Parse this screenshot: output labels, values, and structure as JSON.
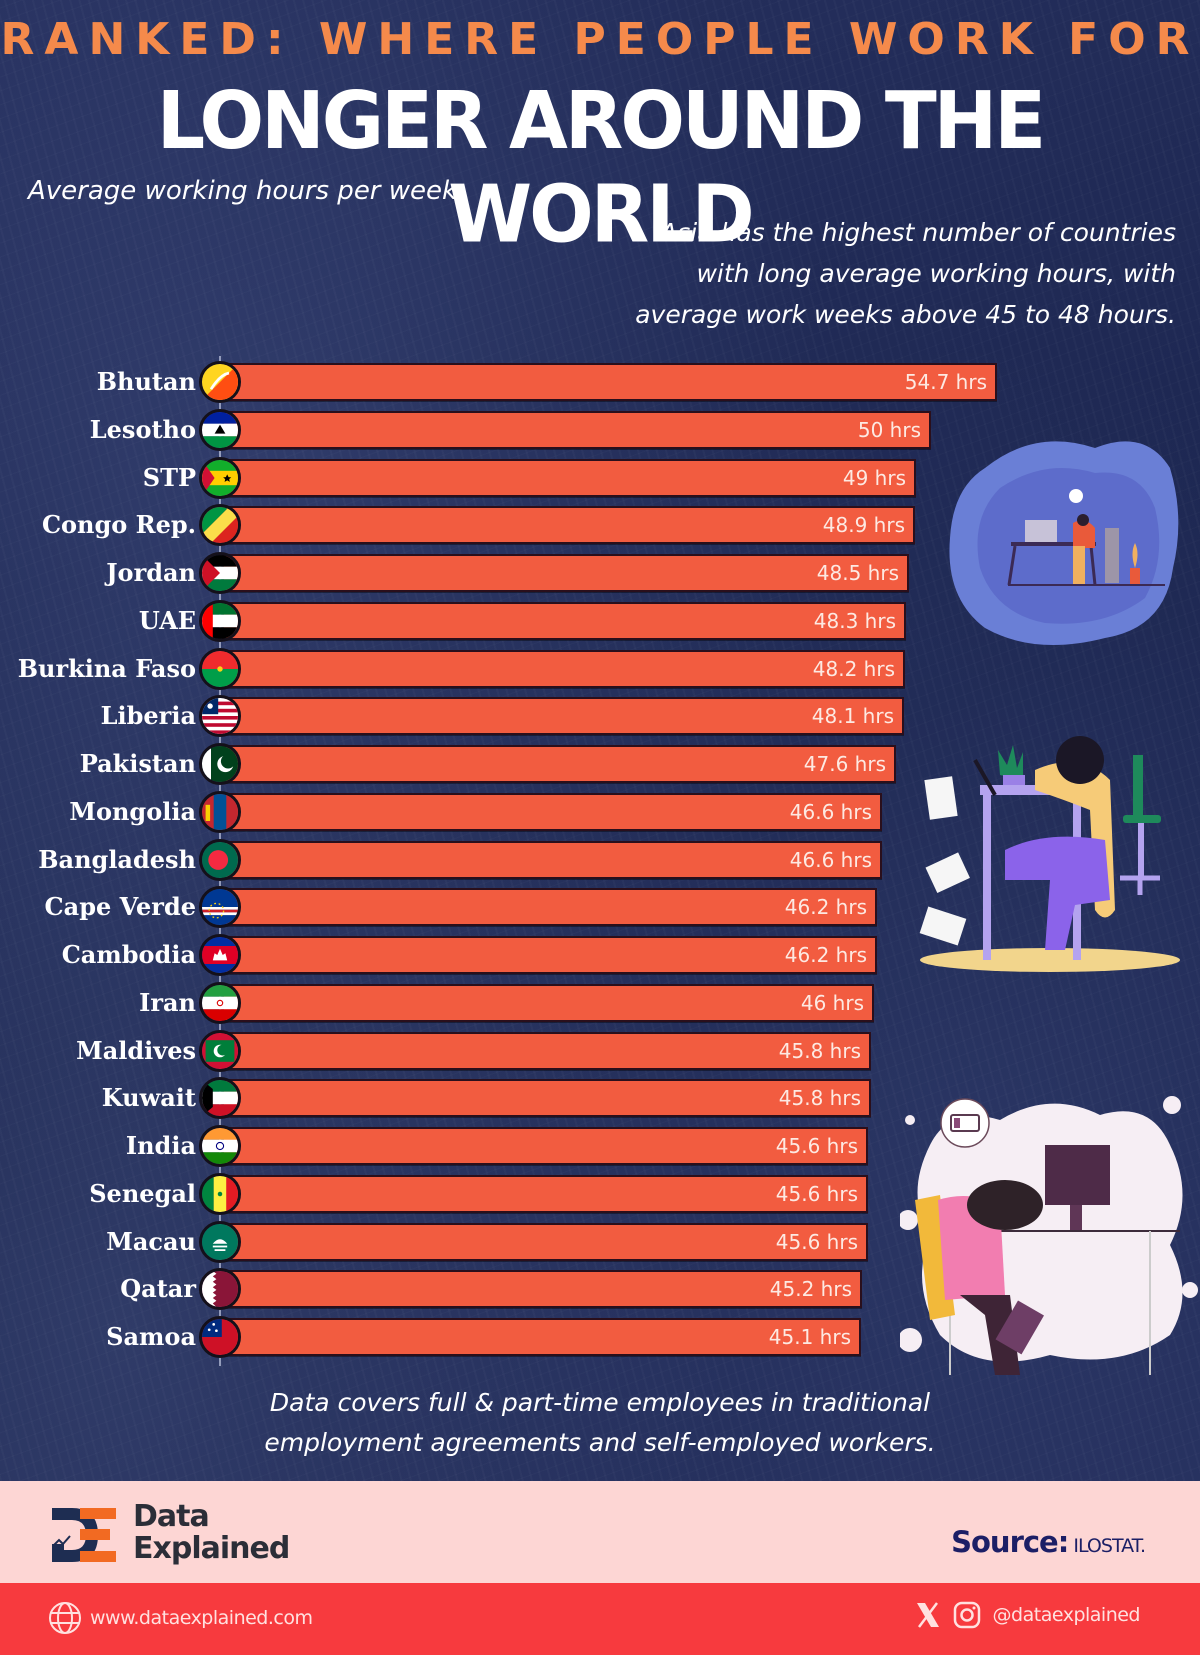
{
  "header": {
    "kicker": "RANKED: WHERE PEOPLE WORK FOR",
    "headline": "LONGER AROUND THE WORLD",
    "subtitle": "Average working hours per week.",
    "note_lines": [
      "Asia has the highest number of countries",
      "with long average working hours, with",
      "average work weeks above 45 to 48 hours."
    ]
  },
  "colors": {
    "background": "#1f2a55",
    "bar": "#f25c40",
    "kicker": "#f58a4b",
    "brand_band": "#fdd6d4",
    "social_band": "#f73a3e",
    "source_text": "#1c1f66"
  },
  "chart_data": {
    "type": "bar",
    "orientation": "horizontal",
    "title": "RANKED: WHERE PEOPLE WORK FOR LONGER AROUND THE WORLD",
    "subtitle": "Average working hours per week.",
    "xlabel": "",
    "ylabel": "",
    "unit": "hrs",
    "grid": false,
    "categories": [
      "Bhutan",
      "Lesotho",
      "STP",
      "Congo Rep.",
      "Jordan",
      "UAE",
      "Burkina Faso",
      "Liberia",
      "Pakistan",
      "Mongolia",
      "Bangladesh",
      "Cape Verde",
      "Cambodia",
      "Iran",
      "Maldives",
      "Kuwait",
      "India",
      "Senegal",
      "Macau",
      "Qatar",
      "Samoa"
    ],
    "values": [
      54.7,
      50,
      49,
      48.9,
      48.5,
      48.3,
      48.2,
      48.1,
      47.6,
      46.6,
      46.6,
      46.2,
      46.2,
      46,
      45.8,
      45.8,
      45.6,
      45.6,
      45.6,
      45.2,
      45.1
    ],
    "value_labels": [
      "54.7 hrs",
      "50 hrs",
      "49 hrs",
      "48.9 hrs",
      "48.5 hrs",
      "48.3 hrs",
      "48.2 hrs",
      "48.1 hrs",
      "47.6 hrs",
      "46.6 hrs",
      "46.6 hrs",
      "46.2 hrs",
      "46.2 hrs",
      "46 hrs",
      "45.8 hrs",
      "45.8 hrs",
      "45.6 hrs",
      "45.6 hrs",
      "45.6 hrs",
      "45.2 hrs",
      "45.1 hrs"
    ]
  },
  "rows": [
    {
      "country": "Bhutan",
      "value": 54.7,
      "label": "54.7 hrs",
      "flag": "bhutan"
    },
    {
      "country": "Lesotho",
      "value": 50,
      "label": "50 hrs",
      "flag": "lesotho"
    },
    {
      "country": "STP",
      "value": 49,
      "label": "49 hrs",
      "flag": "stp"
    },
    {
      "country": "Congo Rep.",
      "value": 48.9,
      "label": "48.9 hrs",
      "flag": "congo"
    },
    {
      "country": "Jordan",
      "value": 48.5,
      "label": "48.5 hrs",
      "flag": "jordan"
    },
    {
      "country": "UAE",
      "value": 48.3,
      "label": "48.3 hrs",
      "flag": "uae"
    },
    {
      "country": "Burkina Faso",
      "value": 48.2,
      "label": "48.2 hrs",
      "flag": "burkina"
    },
    {
      "country": "Liberia",
      "value": 48.1,
      "label": "48.1 hrs",
      "flag": "liberia"
    },
    {
      "country": "Pakistan",
      "value": 47.6,
      "label": "47.6 hrs",
      "flag": "pakistan"
    },
    {
      "country": "Mongolia",
      "value": 46.6,
      "label": "46.6 hrs",
      "flag": "mongolia"
    },
    {
      "country": "Bangladesh",
      "value": 46.6,
      "label": "46.6 hrs",
      "flag": "bangladesh"
    },
    {
      "country": "Cape Verde",
      "value": 46.2,
      "label": "46.2 hrs",
      "flag": "capeverde"
    },
    {
      "country": "Cambodia",
      "value": 46.2,
      "label": "46.2 hrs",
      "flag": "cambodia"
    },
    {
      "country": "Iran",
      "value": 46,
      "label": "46 hrs",
      "flag": "iran"
    },
    {
      "country": "Maldives",
      "value": 45.8,
      "label": "45.8 hrs",
      "flag": "maldives"
    },
    {
      "country": "Kuwait",
      "value": 45.8,
      "label": "45.8 hrs",
      "flag": "kuwait"
    },
    {
      "country": "India",
      "value": 45.6,
      "label": "45.6 hrs",
      "flag": "india"
    },
    {
      "country": "Senegal",
      "value": 45.6,
      "label": "45.6 hrs",
      "flag": "senegal"
    },
    {
      "country": "Macau",
      "value": 45.6,
      "label": "45.6 hrs",
      "flag": "macau"
    },
    {
      "country": "Qatar",
      "value": 45.2,
      "label": "45.2 hrs",
      "flag": "qatar"
    },
    {
      "country": "Samoa",
      "value": 45.1,
      "label": "45.1 hrs",
      "flag": "samoa"
    }
  ],
  "footnote_lines": [
    "Data covers full & part-time employees in traditional",
    "employment agreements and self-employed workers."
  ],
  "brand": {
    "name_line1": "Data",
    "name_line2": "Explained",
    "source_label": "Source:",
    "source_value": "ILOSTAT."
  },
  "social": {
    "website": "www.dataexplained.com",
    "handle": "@dataexplained",
    "icons": [
      "globe-icon",
      "x-icon",
      "instagram-icon"
    ]
  }
}
